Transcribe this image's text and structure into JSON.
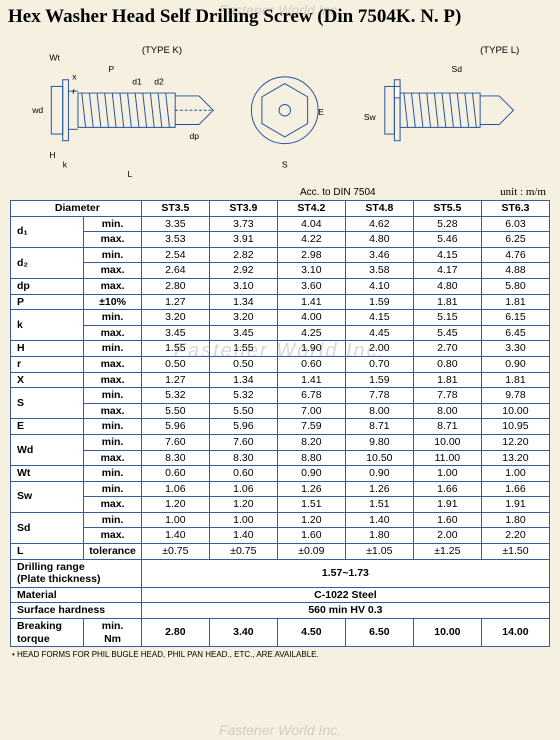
{
  "watermark": "Fastener World Inc.",
  "title": "Hex Washer Head Self Drilling Screw (Din 7504K. N. P)",
  "typeK": "(TYPE K)",
  "typeL": "(TYPE L)",
  "accLabel": "Acc. to DIN 7504",
  "unitLabel": "unit : m/m",
  "diagramLabels": {
    "Wt": "Wt",
    "x": "x",
    "r": "r",
    "wd": "wd",
    "H": "H",
    "k": "k",
    "L": "L",
    "P": "P",
    "d1": "d1",
    "d2": "d2",
    "dp": "dp",
    "E": "E",
    "S": "S",
    "Sd": "Sd",
    "Sw": "Sw"
  },
  "columns": [
    "Diameter",
    "",
    "ST3.5",
    "ST3.9",
    "ST4.2",
    "ST4.8",
    "ST5.5",
    "ST6.3"
  ],
  "rows": [
    {
      "p": "d₁",
      "m": "min.",
      "v": [
        "3.35",
        "3.73",
        "4.04",
        "4.62",
        "5.28",
        "6.03"
      ]
    },
    {
      "p": "",
      "m": "max.",
      "v": [
        "3.53",
        "3.91",
        "4.22",
        "4.80",
        "5.46",
        "6.25"
      ]
    },
    {
      "p": "d₂",
      "m": "min.",
      "v": [
        "2.54",
        "2.82",
        "2.98",
        "3.46",
        "4.15",
        "4.76"
      ]
    },
    {
      "p": "",
      "m": "max.",
      "v": [
        "2.64",
        "2.92",
        "3.10",
        "3.58",
        "4.17",
        "4.88"
      ]
    },
    {
      "p": "dp",
      "m": "max.",
      "v": [
        "2.80",
        "3.10",
        "3.60",
        "4.10",
        "4.80",
        "5.80"
      ]
    },
    {
      "p": "P",
      "m": "±10%",
      "v": [
        "1.27",
        "1.34",
        "1.41",
        "1.59",
        "1.81",
        "1.81"
      ]
    },
    {
      "p": "k",
      "m": "min.",
      "v": [
        "3.20",
        "3.20",
        "4.00",
        "4.15",
        "5.15",
        "6.15"
      ]
    },
    {
      "p": "",
      "m": "max.",
      "v": [
        "3.45",
        "3.45",
        "4.25",
        "4.45",
        "5.45",
        "6.45"
      ]
    },
    {
      "p": "H",
      "m": "min.",
      "v": [
        "1.55",
        "1.55",
        "1.90",
        "2.00",
        "2.70",
        "3.30"
      ]
    },
    {
      "p": "r",
      "m": "max.",
      "v": [
        "0.50",
        "0.50",
        "0.60",
        "0.70",
        "0.80",
        "0.90"
      ]
    },
    {
      "p": "X",
      "m": "max.",
      "v": [
        "1.27",
        "1.34",
        "1.41",
        "1.59",
        "1.81",
        "1.81"
      ]
    },
    {
      "p": "S",
      "m": "min.",
      "v": [
        "5.32",
        "5.32",
        "6.78",
        "7.78",
        "7.78",
        "9.78"
      ]
    },
    {
      "p": "",
      "m": "max.",
      "v": [
        "5.50",
        "5.50",
        "7.00",
        "8.00",
        "8.00",
        "10.00"
      ]
    },
    {
      "p": "E",
      "m": "min.",
      "v": [
        "5.96",
        "5.96",
        "7.59",
        "8.71",
        "8.71",
        "10.95"
      ]
    },
    {
      "p": "Wd",
      "m": "min.",
      "v": [
        "7.60",
        "7.60",
        "8.20",
        "9.80",
        "10.00",
        "12.20"
      ]
    },
    {
      "p": "",
      "m": "max.",
      "v": [
        "8.30",
        "8.30",
        "8.80",
        "10.50",
        "11.00",
        "13.20"
      ]
    },
    {
      "p": "Wt",
      "m": "min.",
      "v": [
        "0.60",
        "0.60",
        "0.90",
        "0.90",
        "1.00",
        "1.00"
      ]
    },
    {
      "p": "Sw",
      "m": "min.",
      "v": [
        "1.06",
        "1.06",
        "1.26",
        "1.26",
        "1.66",
        "1.66"
      ]
    },
    {
      "p": "",
      "m": "max.",
      "v": [
        "1.20",
        "1.20",
        "1.51",
        "1.51",
        "1.91",
        "1.91"
      ]
    },
    {
      "p": "Sd",
      "m": "min.",
      "v": [
        "1.00",
        "1.00",
        "1.20",
        "1.40",
        "1.60",
        "1.80"
      ]
    },
    {
      "p": "",
      "m": "max.",
      "v": [
        "1.40",
        "1.40",
        "1.60",
        "1.80",
        "2.00",
        "2.20"
      ]
    },
    {
      "p": "L",
      "m": "tolerance",
      "v": [
        "±0.75",
        "±0.75",
        "±0.09",
        "±1.05",
        "±1.25",
        "±1.50"
      ]
    }
  ],
  "spanRows": [
    {
      "label": "Drilling range\n(Plate thickness)",
      "value": "1.57~1.73"
    },
    {
      "label": "Material",
      "value": "C-1022 Steel"
    },
    {
      "label": "Surface hardness",
      "value": "560 min HV 0.3"
    }
  ],
  "breakingTorque": {
    "label": "Breaking torque",
    "unit": "min.\nNm",
    "v": [
      "2.80",
      "3.40",
      "4.50",
      "6.50",
      "10.00",
      "14.00"
    ]
  },
  "footnote": "• HEAD FORMS FOR PHIL BUGLE HEAD, PHIL PAN HEAD., ETC., ARE AVAILABLE."
}
